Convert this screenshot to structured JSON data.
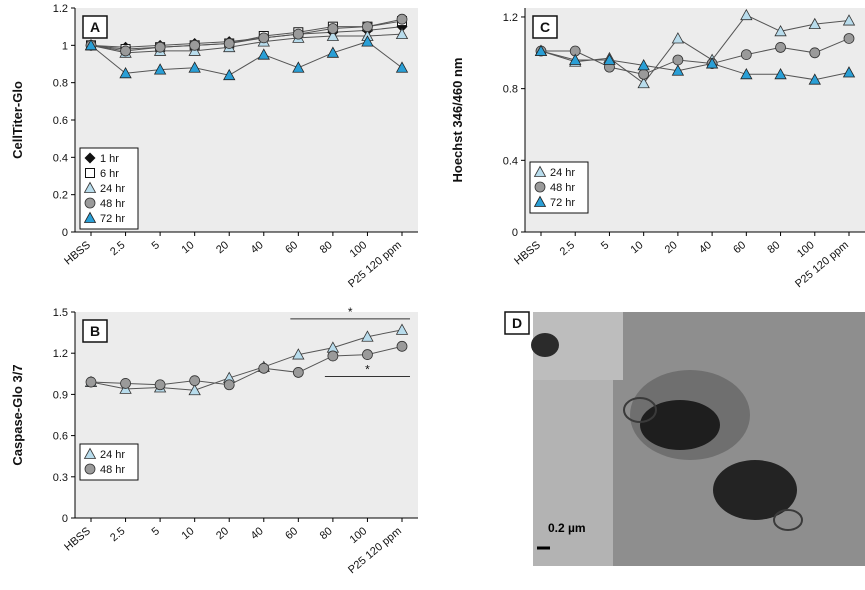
{
  "colors": {
    "plot_bg": "#ececec",
    "line": "#555555",
    "black": "#111111",
    "blue": "#2a9fd6",
    "light_blue": "#b8dcec",
    "gray": "#9a9a9a",
    "white": "#ffffff"
  },
  "chart_data": [
    {
      "type": "line",
      "panel": "A",
      "ylabel": "CellTiter-Glo",
      "categories": [
        "HBSS",
        "2.5",
        "5",
        "10",
        "20",
        "40",
        "60",
        "80",
        "100",
        "P25 120 ppm"
      ],
      "ylim": [
        0,
        1.2
      ],
      "yticks": [
        0,
        0.2,
        0.4,
        0.6,
        0.8,
        1,
        1.2
      ],
      "significance": [
        {
          "from": "80",
          "to": "P25 120 ppm",
          "label": "*",
          "level": 1.25
        }
      ],
      "legend_position": "lower-left",
      "series": [
        {
          "name": "1 hr",
          "marker": "diamond-filled",
          "values": [
            1.0,
            0.99,
            1.0,
            1.01,
            1.02,
            1.04,
            1.06,
            1.07,
            1.08,
            1.1
          ]
        },
        {
          "name": "6 hr",
          "marker": "square-open",
          "values": [
            1.0,
            0.98,
            0.99,
            1.0,
            1.01,
            1.05,
            1.07,
            1.1,
            1.1,
            1.13
          ]
        },
        {
          "name": "24 hr",
          "marker": "triangle-lightblue",
          "values": [
            1.0,
            0.96,
            0.97,
            0.97,
            0.99,
            1.02,
            1.04,
            1.05,
            1.05,
            1.06
          ]
        },
        {
          "name": "48 hr",
          "marker": "circle-gray",
          "values": [
            1.0,
            0.97,
            0.99,
            1.0,
            1.01,
            1.04,
            1.06,
            1.09,
            1.1,
            1.14
          ]
        },
        {
          "name": "72 hr",
          "marker": "triangle-blue",
          "values": [
            1.0,
            0.85,
            0.87,
            0.88,
            0.84,
            0.95,
            0.88,
            0.96,
            1.02,
            0.88
          ]
        }
      ]
    },
    {
      "type": "line",
      "panel": "B",
      "ylabel": "Caspase-Glo 3/7",
      "categories": [
        "HBSS",
        "2.5",
        "5",
        "10",
        "20",
        "40",
        "60",
        "80",
        "100",
        "P25 120 ppm"
      ],
      "ylim": [
        0,
        1.5
      ],
      "yticks": [
        0,
        0.3,
        0.6,
        0.9,
        1.2,
        1.5
      ],
      "significance": [
        {
          "from": "60",
          "to": "P25 120 ppm",
          "label": "*",
          "level": 1.45
        },
        {
          "from": "80",
          "to": "P25 120 ppm",
          "label": "*",
          "level": 1.03
        }
      ],
      "legend_position": "lower-left",
      "series": [
        {
          "name": "24 hr",
          "marker": "triangle-lightblue",
          "values": [
            0.99,
            0.94,
            0.95,
            0.93,
            1.02,
            1.1,
            1.19,
            1.24,
            1.32,
            1.37
          ]
        },
        {
          "name": "48 hr",
          "marker": "circle-gray",
          "values": [
            0.99,
            0.98,
            0.97,
            1.0,
            0.97,
            1.09,
            1.06,
            1.18,
            1.19,
            1.25
          ]
        }
      ]
    },
    {
      "type": "line",
      "panel": "C",
      "ylabel": "Hoechst 346/460 nm",
      "categories": [
        "HBSS",
        "2.5",
        "5",
        "10",
        "20",
        "40",
        "60",
        "80",
        "100",
        "P25 120 ppm"
      ],
      "ylim": [
        0,
        1.25
      ],
      "yticks": [
        0,
        0.4,
        0.8,
        1.2
      ],
      "legend_position": "lower-left",
      "series": [
        {
          "name": "24 hr",
          "marker": "triangle-lightblue",
          "values": [
            1.01,
            0.95,
            0.97,
            0.83,
            1.08,
            0.96,
            1.21,
            1.12,
            1.16,
            1.18
          ]
        },
        {
          "name": "48 hr",
          "marker": "circle-gray",
          "values": [
            1.01,
            1.01,
            0.92,
            0.88,
            0.96,
            0.94,
            0.99,
            1.03,
            1.0,
            1.08
          ]
        },
        {
          "name": "72 hr",
          "marker": "triangle-blue",
          "values": [
            1.01,
            0.96,
            0.96,
            0.93,
            0.9,
            0.94,
            0.88,
            0.88,
            0.85,
            0.89
          ]
        }
      ]
    }
  ],
  "panel_d": {
    "label": "D",
    "scale_text": "0.2 µm"
  }
}
